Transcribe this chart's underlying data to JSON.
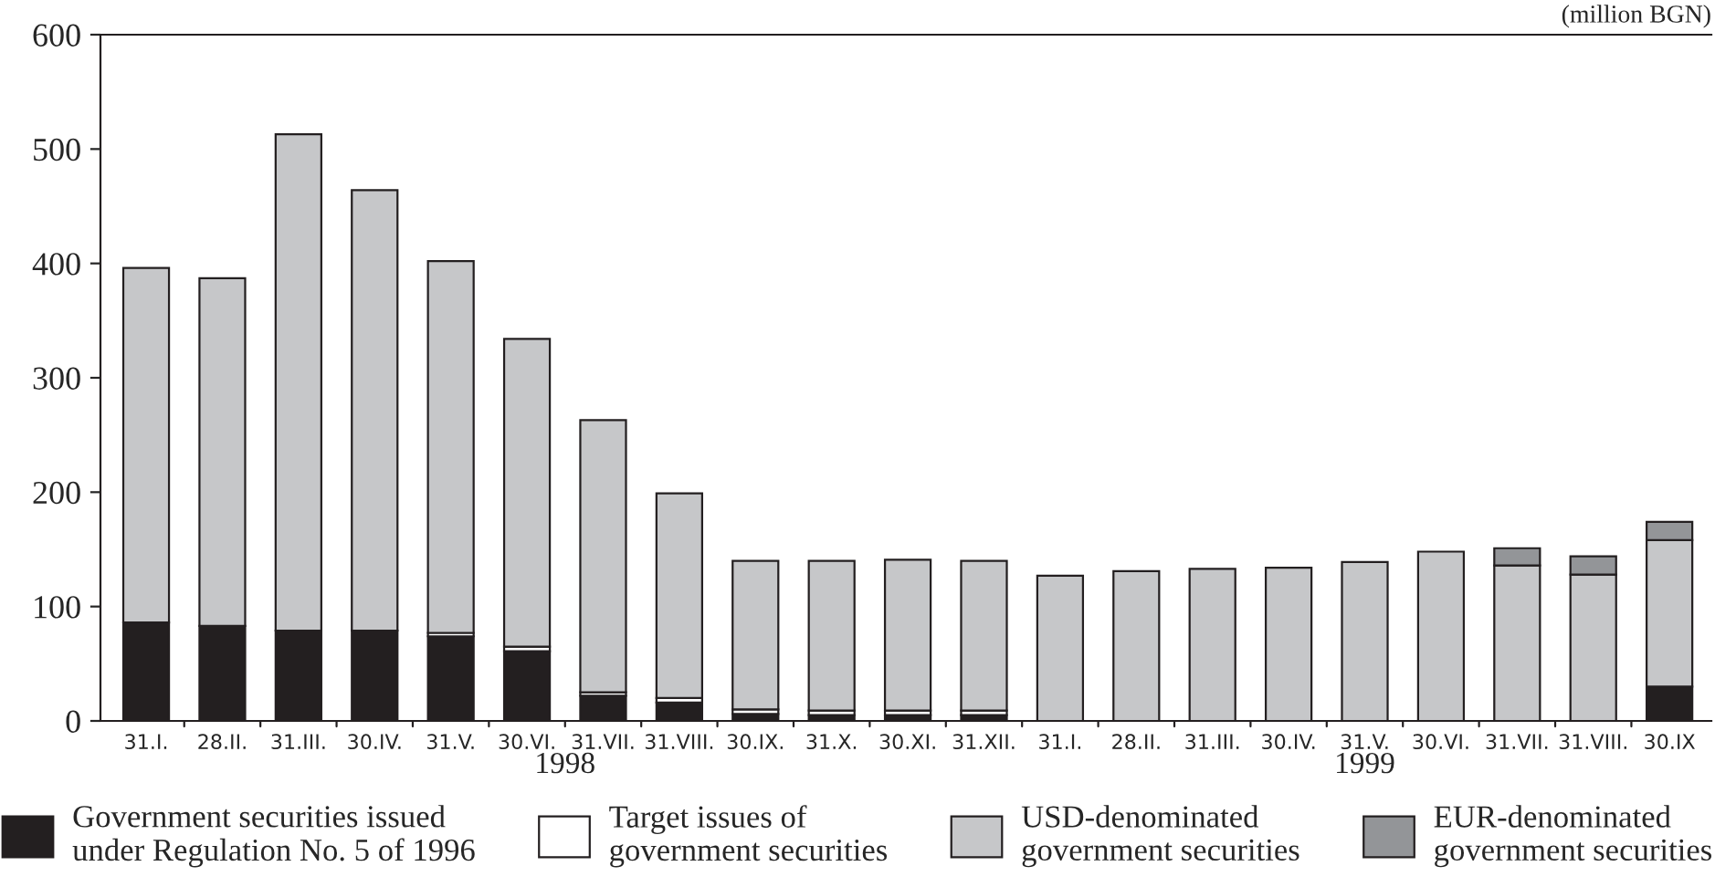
{
  "chart_data": {
    "type": "bar",
    "stacked": true,
    "categories": [
      "31.I.",
      "28.II.",
      "31.III.",
      "30.IV.",
      "31.V.",
      "30.VI.",
      "31.VII.",
      "31.VIII.",
      "30.IX.",
      "31.X.",
      "30.XI.",
      "31.XII.",
      "31.I.",
      "28.II.",
      "31.III.",
      "30.IV.",
      "31.V.",
      "30.VI.",
      "31.VII.",
      "31.VIII.",
      "30.IX"
    ],
    "series": [
      {
        "name": "Government securities issued\nunder Regulation No. 5 of 1996",
        "color": "#231f20",
        "values": [
          86,
          83,
          79,
          79,
          74,
          61,
          22,
          16,
          6,
          5,
          5,
          5,
          null,
          null,
          null,
          null,
          null,
          null,
          null,
          null,
          30
        ]
      },
      {
        "name": "Target issues of\ngovernment securities",
        "color": "#ffffff",
        "values": [
          null,
          null,
          null,
          null,
          3,
          4,
          3,
          4,
          4,
          4,
          4,
          4,
          null,
          null,
          null,
          null,
          null,
          null,
          null,
          null,
          null
        ]
      },
      {
        "name": "USD-denominated\ngovernment securities",
        "color": "#c6c7c9",
        "values": [
          310,
          304,
          434,
          385,
          325,
          269,
          238,
          179,
          130,
          131,
          132,
          131,
          127,
          131,
          133,
          134,
          139,
          148,
          136,
          128,
          128
        ]
      },
      {
        "name": "EUR-denominated\ngovernment securities",
        "color": "#939598",
        "values": [
          null,
          null,
          null,
          null,
          null,
          null,
          null,
          null,
          null,
          null,
          null,
          null,
          null,
          null,
          null,
          null,
          null,
          null,
          15,
          16,
          16
        ]
      }
    ],
    "ylim": [
      0,
      600
    ],
    "yticks": [
      0,
      100,
      200,
      300,
      400,
      500,
      600
    ],
    "annotations": [
      "(million BGN)",
      "1998",
      "1999"
    ],
    "legend": "bottom",
    "grid": false
  }
}
